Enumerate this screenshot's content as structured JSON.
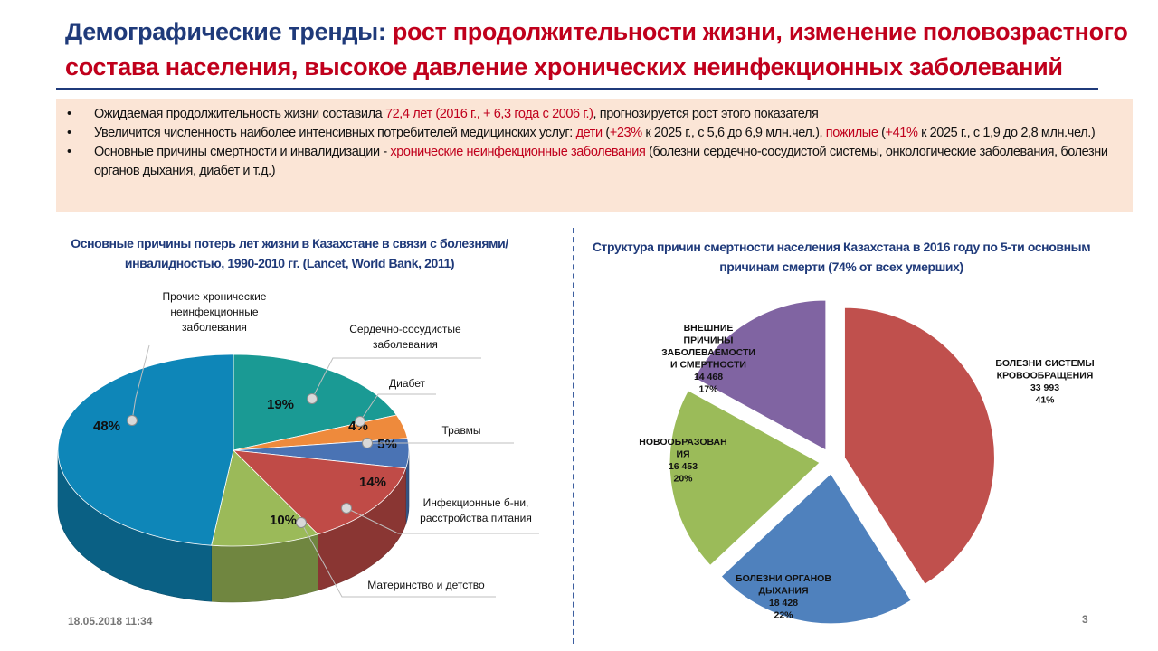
{
  "title": {
    "part1": "Демографические тренды: ",
    "part2": "рост продолжительности жизни, изменение половозрастного состава населения, высокое давление хронических неинфекционных заболеваний"
  },
  "bullets": [
    {
      "segments": [
        {
          "text": "Ожидаемая продолжительность жизни составила ",
          "red": false
        },
        {
          "text": "72,4 лет (2016 г., + 6,3 года с 2006 г.)",
          "red": true
        },
        {
          "text": ", прогнозируется рост этого показателя",
          "red": false
        }
      ]
    },
    {
      "segments": [
        {
          "text": "Увеличится численность наиболее интенсивных потребителей медицинских услуг: ",
          "red": false
        },
        {
          "text": "дети",
          "red": true
        },
        {
          "text": " (",
          "red": false
        },
        {
          "text": "+23%",
          "red": true
        },
        {
          "text": " к 2025 г., с 5,6 до 6,9 млн.чел.), ",
          "red": false
        },
        {
          "text": "пожилые",
          "red": true
        },
        {
          "text": " (",
          "red": false
        },
        {
          "text": "+41%",
          "red": true
        },
        {
          "text": " к 2025 г., с 1,9 до 2,8 млн.чел.)",
          "red": false
        }
      ]
    },
    {
      "segments": [
        {
          "text": "Основные причины смертности и инвалидизации -  ",
          "red": false
        },
        {
          "text": "хронические неинфекционные заболевания",
          "red": true
        },
        {
          "text": " (болезни сердечно-сосудистой системы, онкологические заболевания, болезни органов дыхания, диабет и т.д.)",
          "red": false
        }
      ]
    }
  ],
  "chart_data": [
    {
      "type": "pie",
      "title": "Основные причины потерь лет жизни в Казахстане в связи с болезнями/инвалидностью, 1990-2010 гг. (Lancet, World Bank, 2011)",
      "slices": [
        {
          "label": "Сердечно-сосудистые заболевания",
          "value": 19,
          "display": "19%",
          "color": "#1a9a94"
        },
        {
          "label": "Диабет",
          "value": 4,
          "display": "4%",
          "color": "#ee8a3c"
        },
        {
          "label": "Травмы",
          "value": 5,
          "display": "5%",
          "color": "#4a73b4"
        },
        {
          "label": "Инфекционные б-ни, расстройства питания",
          "value": 14,
          "display": "14%",
          "color": "#c04b47"
        },
        {
          "label": "Материнство и детство",
          "value": 10,
          "display": "10%",
          "color": "#9bba59"
        },
        {
          "label": "Прочие хронические неинфекционные заболевания",
          "value": 48,
          "display": "48%",
          "color": "#0e86b8"
        }
      ]
    },
    {
      "type": "pie",
      "title": "Структура причин смертности населения Казахстана в 2016 году по 5-ти основным причинам смерти (74% от всех умерших)",
      "slices": [
        {
          "label": "БОЛЕЗНИ СИСТЕМЫ КРОВООБРАЩЕНИЯ",
          "count": "33 993",
          "value": 41,
          "display": "41%",
          "color": "#c0504d"
        },
        {
          "label": "БОЛЕЗНИ ОРГАНОВ ДЫХАНИЯ",
          "count": "18 428",
          "value": 22,
          "display": "22%",
          "color": "#4f81bd"
        },
        {
          "label": "НОВООБРАЗОВАН ИЯ",
          "count": "16 453",
          "value": 20,
          "display": "20%",
          "color": "#9bbb59"
        },
        {
          "label": "ВНЕШНИЕ ПРИЧИНЫ ЗАБОЛЕВАЕМОСТИ И СМЕРТНОСТИ",
          "count": "14 468",
          "value": 17,
          "display": "17%",
          "color": "#8064a2"
        }
      ]
    }
  ],
  "footer": {
    "date": "18.05.2018 11:34",
    "page": "3"
  }
}
